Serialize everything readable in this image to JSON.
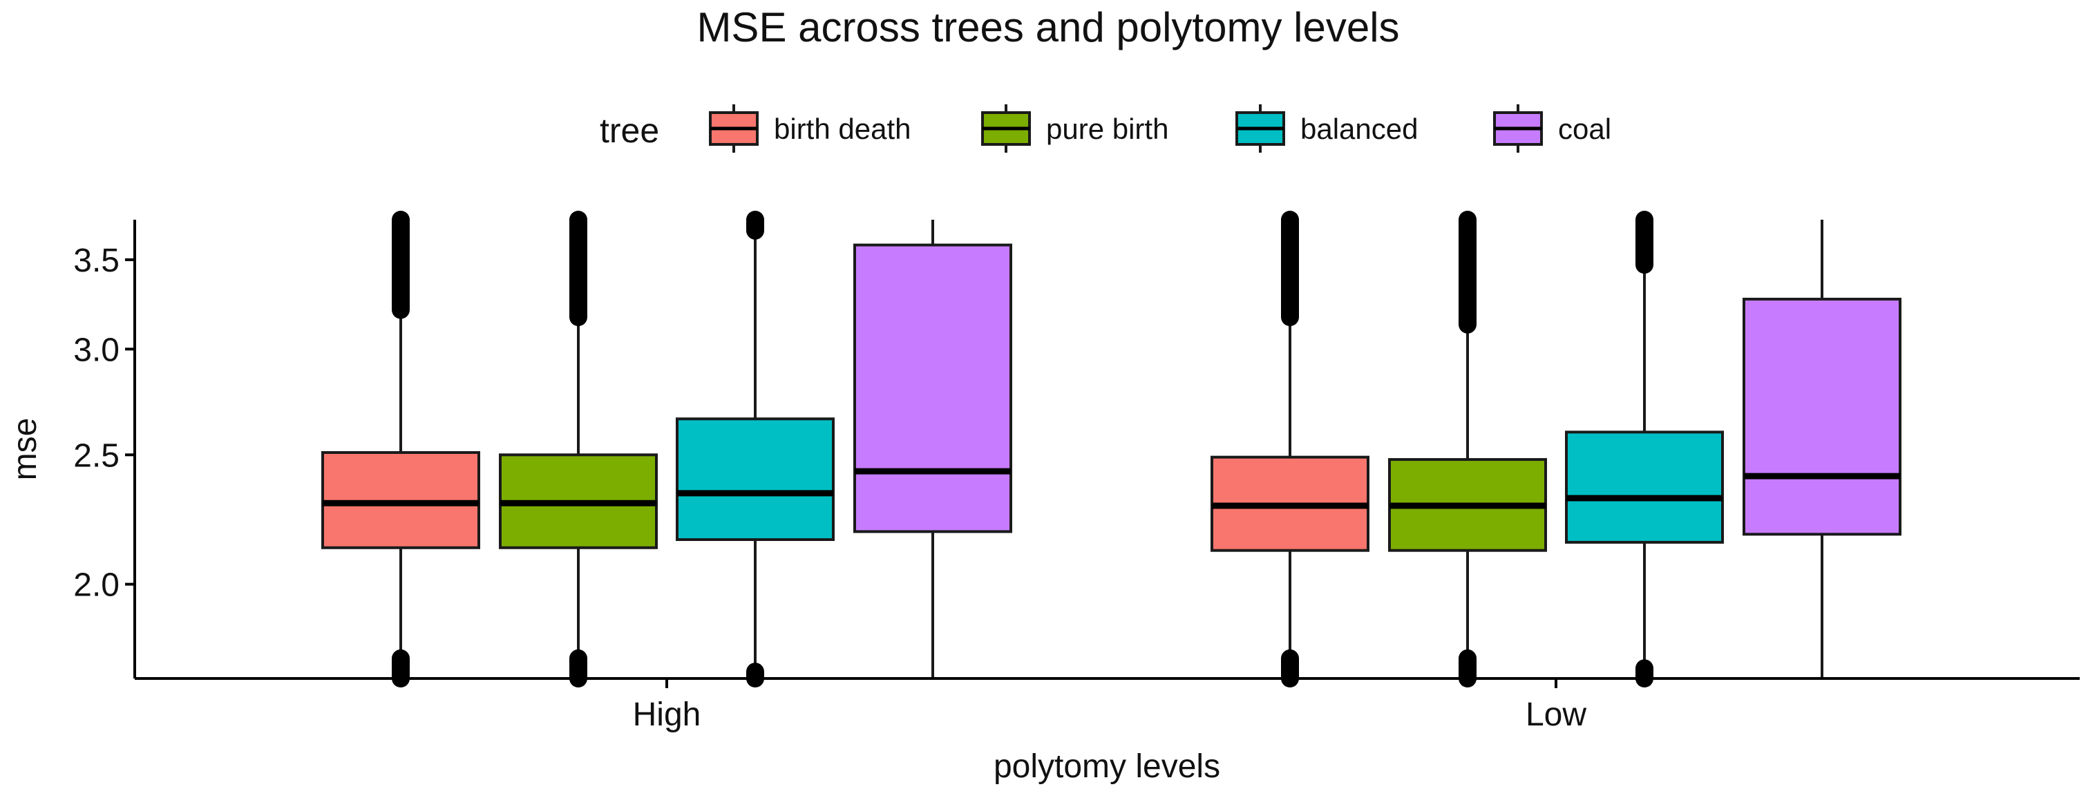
{
  "chart_data": {
    "type": "boxplot",
    "title": "MSE across trees and polytomy levels",
    "xlabel": "polytomy levels",
    "ylabel": "mse",
    "y_scale": "log",
    "ylim": [
      1.7,
      3.75
    ],
    "y_ticks": [
      2.0,
      2.5,
      3.0,
      3.5
    ],
    "y_tick_labels": [
      "2.0",
      "2.5",
      "3.0",
      "3.5"
    ],
    "categories": [
      "High",
      "Low"
    ],
    "legend": {
      "title": "tree",
      "position": "top",
      "entries": [
        "birth death",
        "pure birth",
        "balanced",
        "coal"
      ]
    },
    "series": [
      {
        "name": "birth death",
        "color": "#F8766D",
        "boxes": [
          {
            "category": "High",
            "min": 1.7,
            "q1": 2.13,
            "median": 2.3,
            "q3": 2.51,
            "max": 3.75,
            "whisker_low": 1.76,
            "whisker_high": 3.21,
            "outliers_low": [
              1.7,
              1.76
            ],
            "outliers_high": [
              3.21,
              3.75
            ]
          },
          {
            "category": "Low",
            "min": 1.7,
            "q1": 2.12,
            "median": 2.29,
            "q3": 2.49,
            "max": 3.75,
            "whisker_low": 1.76,
            "whisker_high": 3.17,
            "outliers_low": [
              1.7,
              1.76
            ],
            "outliers_high": [
              3.17,
              3.75
            ]
          }
        ]
      },
      {
        "name": "pure birth",
        "color": "#7CAE00",
        "boxes": [
          {
            "category": "High",
            "min": 1.7,
            "q1": 2.13,
            "median": 2.3,
            "q3": 2.5,
            "max": 3.75,
            "whisker_low": 1.76,
            "whisker_high": 3.17,
            "outliers_low": [
              1.7,
              1.76
            ],
            "outliers_high": [
              3.17,
              3.75
            ]
          },
          {
            "category": "Low",
            "min": 1.7,
            "q1": 2.12,
            "median": 2.29,
            "q3": 2.48,
            "max": 3.75,
            "whisker_low": 1.76,
            "whisker_high": 3.13,
            "outliers_low": [
              1.7,
              1.76
            ],
            "outliers_high": [
              3.13,
              3.75
            ]
          }
        ]
      },
      {
        "name": "balanced",
        "color": "#00BFC4",
        "boxes": [
          {
            "category": "High",
            "min": 1.7,
            "q1": 2.16,
            "median": 2.34,
            "q3": 2.66,
            "max": 3.75,
            "whisker_low": 1.72,
            "whisker_high": 3.68,
            "outliers_low": [
              1.7,
              1.72
            ],
            "outliers_high": [
              3.68,
              3.75
            ]
          },
          {
            "category": "Low",
            "min": 1.7,
            "q1": 2.15,
            "median": 2.32,
            "q3": 2.6,
            "max": 3.75,
            "whisker_low": 1.73,
            "whisker_high": 3.47,
            "outliers_low": [
              1.7,
              1.73
            ],
            "outliers_high": [
              3.47,
              3.75
            ]
          }
        ]
      },
      {
        "name": "coal",
        "color": "#C77CFF",
        "boxes": [
          {
            "category": "High",
            "min": 1.7,
            "q1": 2.19,
            "median": 2.43,
            "q3": 3.59,
            "max": 3.75,
            "whisker_low": 1.7,
            "whisker_high": 3.75,
            "outliers_low": [],
            "outliers_high": []
          },
          {
            "category": "Low",
            "min": 1.7,
            "q1": 2.18,
            "median": 2.41,
            "q3": 3.27,
            "max": 3.75,
            "whisker_low": 1.7,
            "whisker_high": 3.75,
            "outliers_low": [],
            "outliers_high": []
          }
        ]
      }
    ]
  }
}
